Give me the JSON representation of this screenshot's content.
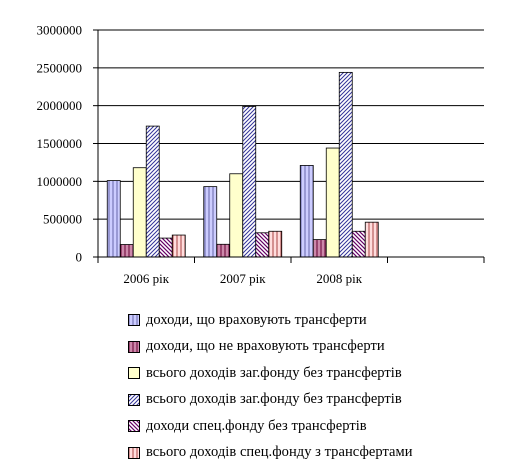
{
  "chart_data": {
    "type": "bar",
    "categories": [
      "2006 рік",
      "2007 рік",
      "2008 рік",
      ""
    ],
    "ylim": [
      0,
      3000000
    ],
    "yticks": [
      0,
      500000,
      1000000,
      1500000,
      2000000,
      2500000,
      3000000
    ],
    "grid": true,
    "legend_position": "bottom",
    "series": [
      {
        "name": "доходи, що враховують трансферти",
        "values": [
          1010000,
          930000,
          1210000,
          null
        ],
        "fill": "#ccccff",
        "pattern": "vertical-lines",
        "pattern_color": "#6666aa"
      },
      {
        "name": "доходи, що не враховують трансферти",
        "values": [
          165000,
          168000,
          230000,
          null
        ],
        "fill": "#cc88aa",
        "pattern": "vertical-lines",
        "pattern_color": "#660033"
      },
      {
        "name": "всього доходів заг.фонду без трансфертів",
        "values": [
          1180000,
          1100000,
          1440000,
          null
        ],
        "fill": "#ffffcc",
        "pattern": "none",
        "pattern_color": "#ffffcc"
      },
      {
        "name": "всього доходів заг.фонду без трансфертів",
        "values": [
          1730000,
          1990000,
          2440000,
          null
        ],
        "fill": "#ffffff",
        "pattern": "diagonal-up",
        "pattern_color": "#333399"
      },
      {
        "name": "доходи спец.фонду без трансфертів",
        "values": [
          250000,
          320000,
          340000,
          null
        ],
        "fill": "#ffffff",
        "pattern": "diagonal-down",
        "pattern_color": "#660066"
      },
      {
        "name": "всього доходів спец.фонду з трансфертами",
        "values": [
          290000,
          340000,
          460000,
          null
        ],
        "fill": "#ffdddd",
        "pattern": "vertical-lines",
        "pattern_color": "#aa4444"
      }
    ]
  }
}
